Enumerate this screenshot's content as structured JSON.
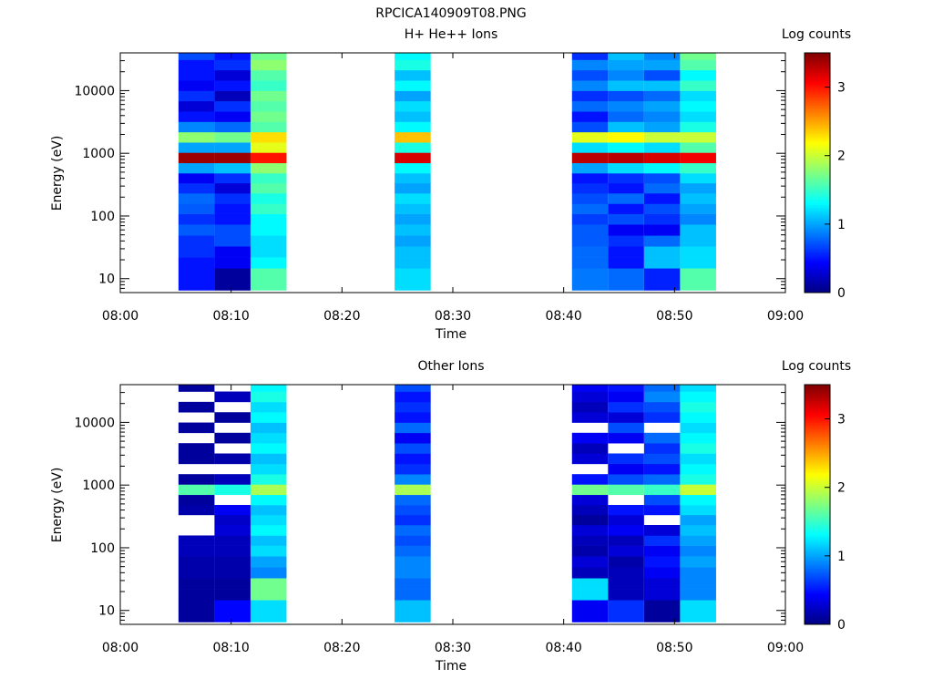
{
  "figure_title": "RPCICA140909T08.PNG",
  "chart_data": [
    {
      "type": "heatmap",
      "title": "H+ He++ Ions",
      "xlabel": "Time",
      "ylabel": "Energy (eV)",
      "x_ticks": [
        "08:00",
        "08:10",
        "08:20",
        "08:30",
        "08:40",
        "08:50",
        "09:00"
      ],
      "x_range": [
        "08:00",
        "09:00"
      ],
      "y_scale": "log",
      "y_range": [
        6,
        40000
      ],
      "y_ticks": [
        10,
        100,
        1000,
        10000
      ],
      "y_tick_labels": [
        "10",
        "100",
        "1000",
        "10000"
      ],
      "colorbar": {
        "label": "Log counts",
        "range": [
          0,
          3.5
        ],
        "ticks": [
          "0",
          "1",
          "2",
          "3"
        ],
        "colormap": "jet"
      },
      "energy_bins_eV": [
        8,
        12,
        18,
        27,
        40,
        60,
        90,
        130,
        190,
        280,
        400,
        580,
        850,
        1240,
        1800,
        2650,
        3850,
        5650,
        8250,
        12000,
        17600,
        25700,
        37600
      ],
      "time_bins": [
        {
          "start": "08:05:15",
          "end": "08:08:30",
          "log_counts": [
            0.5,
            0.5,
            0.5,
            0.6,
            0.6,
            0.75,
            0.6,
            0.75,
            0.8,
            0.6,
            0.4,
            1.0,
            3.4,
            1.0,
            1.8,
            0.9,
            0.5,
            0.3,
            0.6,
            0.4,
            0.5,
            0.5,
            0.7
          ]
        },
        {
          "start": "08:08:30",
          "end": "08:11:45",
          "log_counts": [
            0.1,
            0.1,
            0.4,
            0.4,
            0.7,
            0.7,
            0.5,
            0.5,
            0.6,
            0.3,
            0.6,
            1.1,
            3.4,
            1.0,
            1.7,
            0.8,
            0.4,
            0.6,
            0.2,
            0.5,
            0.3,
            0.6,
            0.5
          ]
        },
        {
          "start": "08:11:45",
          "end": "08:15:00",
          "log_counts": [
            1.6,
            1.6,
            1.3,
            1.2,
            1.2,
            1.3,
            1.3,
            1.5,
            1.4,
            1.6,
            1.5,
            1.8,
            3.0,
            2.1,
            2.3,
            1.6,
            1.7,
            1.6,
            1.7,
            1.5,
            1.6,
            1.8,
            1.7
          ]
        },
        {
          "start": "08:24:45",
          "end": "08:28:00",
          "log_counts": [
            1.2,
            1.2,
            1.1,
            1.1,
            1.0,
            1.1,
            1.0,
            1.1,
            1.2,
            1.0,
            1.1,
            1.3,
            3.2,
            1.4,
            2.4,
            1.3,
            1.1,
            1.2,
            1.0,
            1.3,
            1.1,
            1.4,
            1.3
          ]
        },
        {
          "start": "08:40:45",
          "end": "08:44:00",
          "log_counts": [
            0.85,
            0.85,
            0.8,
            0.8,
            0.75,
            0.75,
            0.65,
            0.8,
            0.7,
            0.6,
            0.5,
            1.0,
            3.3,
            1.2,
            2.1,
            0.7,
            0.5,
            0.8,
            0.6,
            0.9,
            0.7,
            0.9,
            0.6
          ]
        },
        {
          "start": "08:44:00",
          "end": "08:47:15",
          "log_counts": [
            0.8,
            0.8,
            0.5,
            0.5,
            0.6,
            0.4,
            0.7,
            0.5,
            0.8,
            0.5,
            0.6,
            1.2,
            3.3,
            1.3,
            2.2,
            1.1,
            0.8,
            0.9,
            0.7,
            1.1,
            0.9,
            1.0,
            1.1
          ]
        },
        {
          "start": "08:47:15",
          "end": "08:50:30",
          "log_counts": [
            0.55,
            0.55,
            1.1,
            1.1,
            0.8,
            0.4,
            0.6,
            0.7,
            0.5,
            0.8,
            0.7,
            1.3,
            3.2,
            1.2,
            2.0,
            1.0,
            0.9,
            1.0,
            0.8,
            1.1,
            0.7,
            1.0,
            0.9
          ]
        },
        {
          "start": "08:50:30",
          "end": "08:53:45",
          "log_counts": [
            1.6,
            1.6,
            1.2,
            1.2,
            1.1,
            1.1,
            0.9,
            1.0,
            1.1,
            1.0,
            1.2,
            1.5,
            3.1,
            1.6,
            2.0,
            1.4,
            1.2,
            1.3,
            1.2,
            1.5,
            1.3,
            1.6,
            1.7
          ]
        }
      ]
    },
    {
      "type": "heatmap",
      "title": "Other Ions",
      "xlabel": "Time",
      "ylabel": "Energy (eV)",
      "x_ticks": [
        "08:00",
        "08:10",
        "08:20",
        "08:30",
        "08:40",
        "08:50",
        "09:00"
      ],
      "x_range": [
        "08:00",
        "09:00"
      ],
      "y_scale": "log",
      "y_range": [
        6,
        40000
      ],
      "y_ticks": [
        10,
        100,
        1000,
        10000
      ],
      "y_tick_labels": [
        "10",
        "100",
        "1000",
        "10000"
      ],
      "colorbar": {
        "label": "Log counts",
        "range": [
          0,
          3.5
        ],
        "ticks": [
          "0",
          "1",
          "2",
          "3"
        ],
        "colormap": "jet"
      },
      "energy_bins_eV": [
        8,
        12,
        18,
        27,
        40,
        60,
        90,
        130,
        190,
        280,
        400,
        580,
        850,
        1240,
        1800,
        2650,
        3850,
        5650,
        8250,
        12000,
        17600,
        25700,
        37600
      ],
      "time_bins": [
        {
          "start": "08:05:15",
          "end": "08:08:30",
          "log_counts": [
            0.1,
            0.1,
            0.1,
            0.1,
            0.15,
            0.15,
            0.2,
            0.2,
            null,
            null,
            0.15,
            0.1,
            1.6,
            0.1,
            null,
            0.1,
            0.1,
            null,
            0.1,
            null,
            0.1,
            null,
            0.1
          ]
        },
        {
          "start": "08:08:30",
          "end": "08:11:45",
          "log_counts": [
            0.45,
            0.45,
            0.1,
            0.1,
            0.15,
            0.15,
            0.2,
            0.2,
            0.3,
            0.25,
            0.4,
            null,
            1.4,
            0.2,
            null,
            0.15,
            null,
            0.1,
            null,
            0.1,
            null,
            0.2,
            null
          ]
        },
        {
          "start": "08:11:45",
          "end": "08:15:00",
          "log_counts": [
            1.2,
            1.2,
            1.7,
            1.7,
            0.9,
            1.0,
            1.2,
            1.1,
            1.3,
            1.2,
            1.1,
            1.3,
            1.9,
            1.4,
            1.2,
            1.1,
            1.3,
            1.2,
            1.1,
            1.3,
            1.2,
            1.4,
            1.3
          ]
        },
        {
          "start": "08:24:45",
          "end": "08:28:00",
          "log_counts": [
            1.1,
            1.1,
            0.8,
            0.8,
            0.9,
            0.9,
            0.8,
            0.7,
            0.8,
            0.6,
            0.7,
            0.8,
            1.9,
            0.9,
            0.6,
            0.5,
            0.7,
            0.4,
            0.8,
            0.5,
            0.6,
            0.5,
            0.7
          ]
        },
        {
          "start": "08:40:45",
          "end": "08:44:00",
          "log_counts": [
            0.4,
            0.4,
            1.2,
            1.2,
            0.2,
            0.3,
            0.15,
            0.2,
            0.3,
            0.1,
            0.2,
            0.3,
            1.7,
            0.5,
            null,
            0.3,
            0.2,
            0.4,
            null,
            0.3,
            0.2,
            0.3,
            0.4
          ]
        },
        {
          "start": "08:44:00",
          "end": "08:47:15",
          "log_counts": [
            0.6,
            0.6,
            0.2,
            0.2,
            0.2,
            0.15,
            0.3,
            0.2,
            0.4,
            0.3,
            0.5,
            null,
            1.6,
            0.7,
            0.4,
            0.6,
            null,
            0.4,
            0.7,
            0.3,
            0.6,
            0.4,
            0.5
          ]
        },
        {
          "start": "08:47:15",
          "end": "08:50:30",
          "log_counts": [
            0.1,
            0.1,
            0.3,
            0.3,
            0.4,
            0.5,
            0.4,
            0.6,
            0.3,
            null,
            0.5,
            0.7,
            1.5,
            0.8,
            0.5,
            0.7,
            0.6,
            0.8,
            null,
            0.6,
            0.7,
            0.9,
            0.8
          ]
        },
        {
          "start": "08:50:30",
          "end": "08:53:45",
          "log_counts": [
            1.2,
            1.2,
            0.9,
            0.9,
            0.9,
            1.0,
            0.9,
            1.0,
            1.1,
            1.0,
            1.2,
            1.3,
            2.0,
            1.4,
            1.3,
            1.2,
            1.4,
            1.3,
            1.2,
            1.3,
            1.4,
            1.3,
            1.2
          ]
        }
      ]
    }
  ]
}
